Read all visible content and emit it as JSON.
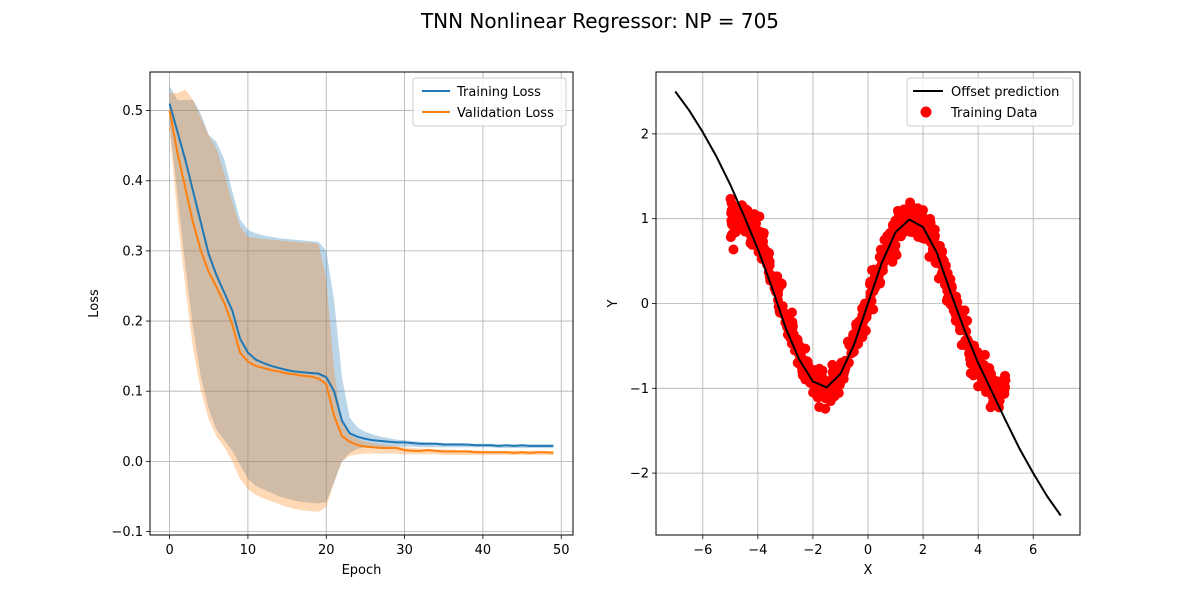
{
  "figure": {
    "title": "TNN Nonlinear Regressor: NP = 705"
  },
  "chart_data": [
    {
      "type": "line",
      "panel": "left",
      "xlabel": "Epoch",
      "ylabel": "Loss",
      "xlim": [
        -2.5,
        51.5
      ],
      "ylim": [
        -0.105,
        0.555
      ],
      "xticks": [
        0,
        10,
        20,
        30,
        40,
        50
      ],
      "yticks": [
        -0.1,
        0.0,
        0.1,
        0.2,
        0.3,
        0.4,
        0.5
      ],
      "xtick_labels": [
        "0",
        "10",
        "20",
        "30",
        "40",
        "50"
      ],
      "ytick_labels": [
        "−0.1",
        "0.0",
        "0.1",
        "0.2",
        "0.3",
        "0.4",
        "0.5"
      ],
      "grid": true,
      "legend": "upper right",
      "series": [
        {
          "name": "Training Loss",
          "color": "#1f77b4",
          "band_opacity": 0.3,
          "x": [
            0,
            1,
            2,
            3,
            4,
            5,
            6,
            7,
            8,
            9,
            10,
            11,
            12,
            13,
            14,
            15,
            16,
            17,
            18,
            19,
            20,
            21,
            22,
            23,
            24,
            25,
            26,
            27,
            28,
            29,
            30,
            31,
            32,
            33,
            34,
            35,
            36,
            37,
            38,
            39,
            40,
            41,
            42,
            43,
            44,
            45,
            46,
            47,
            48,
            49
          ],
          "mean": [
            0.51,
            0.47,
            0.43,
            0.385,
            0.34,
            0.295,
            0.265,
            0.24,
            0.215,
            0.175,
            0.155,
            0.145,
            0.14,
            0.136,
            0.133,
            0.13,
            0.128,
            0.127,
            0.126,
            0.125,
            0.12,
            0.1,
            0.058,
            0.04,
            0.035,
            0.032,
            0.03,
            0.029,
            0.028,
            0.027,
            0.027,
            0.026,
            0.025,
            0.025,
            0.025,
            0.024,
            0.024,
            0.024,
            0.024,
            0.023,
            0.023,
            0.023,
            0.022,
            0.023,
            0.022,
            0.023,
            0.022,
            0.022,
            0.022,
            0.022
          ],
          "upper": [
            0.535,
            0.515,
            0.515,
            0.515,
            0.495,
            0.465,
            0.455,
            0.43,
            0.385,
            0.345,
            0.33,
            0.325,
            0.322,
            0.32,
            0.318,
            0.317,
            0.316,
            0.315,
            0.314,
            0.313,
            0.3,
            0.23,
            0.12,
            0.062,
            0.048,
            0.042,
            0.038,
            0.035,
            0.033,
            0.031,
            0.03,
            0.029,
            0.028,
            0.027,
            0.027,
            0.026,
            0.026,
            0.026,
            0.025,
            0.025,
            0.025,
            0.025,
            0.024,
            0.024,
            0.024,
            0.024,
            0.024,
            0.024,
            0.024,
            0.024
          ],
          "lower": [
            0.48,
            0.38,
            0.28,
            0.19,
            0.12,
            0.075,
            0.045,
            0.03,
            0.015,
            -0.005,
            -0.025,
            -0.035,
            -0.04,
            -0.045,
            -0.05,
            -0.053,
            -0.056,
            -0.058,
            -0.059,
            -0.06,
            -0.058,
            -0.03,
            0.0,
            0.012,
            0.018,
            0.02,
            0.02,
            0.02,
            0.021,
            0.021,
            0.021,
            0.021,
            0.02,
            0.02,
            0.02,
            0.02,
            0.02,
            0.02,
            0.02,
            0.02,
            0.02,
            0.02,
            0.019,
            0.019,
            0.019,
            0.019,
            0.019,
            0.019,
            0.019,
            0.019
          ]
        },
        {
          "name": "Validation Loss",
          "color": "#ff7f0e",
          "band_opacity": 0.3,
          "x": [
            0,
            1,
            2,
            3,
            4,
            5,
            6,
            7,
            8,
            9,
            10,
            11,
            12,
            13,
            14,
            15,
            16,
            17,
            18,
            19,
            20,
            21,
            22,
            23,
            24,
            25,
            26,
            27,
            28,
            29,
            30,
            31,
            32,
            33,
            34,
            35,
            36,
            37,
            38,
            39,
            40,
            41,
            42,
            43,
            44,
            45,
            46,
            47,
            48,
            49
          ],
          "mean": [
            0.5,
            0.44,
            0.39,
            0.34,
            0.3,
            0.27,
            0.248,
            0.225,
            0.195,
            0.155,
            0.142,
            0.136,
            0.133,
            0.13,
            0.128,
            0.125,
            0.124,
            0.122,
            0.121,
            0.118,
            0.11,
            0.065,
            0.036,
            0.028,
            0.023,
            0.021,
            0.02,
            0.019,
            0.019,
            0.019,
            0.016,
            0.015,
            0.015,
            0.016,
            0.015,
            0.014,
            0.014,
            0.014,
            0.014,
            0.013,
            0.013,
            0.013,
            0.013,
            0.013,
            0.012,
            0.013,
            0.012,
            0.013,
            0.013,
            0.012
          ],
          "upper": [
            0.525,
            0.525,
            0.53,
            0.515,
            0.49,
            0.465,
            0.445,
            0.41,
            0.37,
            0.335,
            0.32,
            0.318,
            0.317,
            0.316,
            0.315,
            0.314,
            0.313,
            0.312,
            0.312,
            0.31,
            0.26,
            0.13,
            0.055,
            0.038,
            0.032,
            0.028,
            0.026,
            0.024,
            0.023,
            0.022,
            0.02,
            0.019,
            0.018,
            0.018,
            0.017,
            0.017,
            0.017,
            0.016,
            0.016,
            0.016,
            0.015,
            0.015,
            0.015,
            0.015,
            0.015,
            0.015,
            0.015,
            0.015,
            0.015,
            0.015
          ],
          "lower": [
            0.47,
            0.35,
            0.25,
            0.16,
            0.1,
            0.06,
            0.035,
            0.02,
            0.0,
            -0.025,
            -0.04,
            -0.048,
            -0.053,
            -0.057,
            -0.061,
            -0.065,
            -0.068,
            -0.07,
            -0.071,
            -0.072,
            -0.065,
            -0.03,
            0.0,
            0.008,
            0.01,
            0.011,
            0.011,
            0.011,
            0.011,
            0.011,
            0.01,
            0.01,
            0.01,
            0.01,
            0.01,
            0.009,
            0.009,
            0.009,
            0.009,
            0.009,
            0.009,
            0.009,
            0.009,
            0.009,
            0.009,
            0.009,
            0.009,
            0.009,
            0.009,
            0.009
          ]
        }
      ]
    },
    {
      "type": "scatter",
      "panel": "right",
      "xlabel": "X",
      "ylabel": "Y",
      "xlim": [
        -7.7,
        7.7
      ],
      "ylim": [
        -2.73,
        2.73
      ],
      "xticks": [
        -6,
        -4,
        -2,
        0,
        2,
        4,
        6
      ],
      "yticks": [
        -2,
        -1,
        0,
        1,
        2
      ],
      "xtick_labels": [
        "−6",
        "−4",
        "−2",
        "0",
        "2",
        "4",
        "6"
      ],
      "ytick_labels": [
        "−2",
        "−1",
        "0",
        "1",
        "2"
      ],
      "grid": true,
      "legend": "upper right",
      "series": [
        {
          "name": "Offset prediction",
          "type": "line",
          "color": "#000000",
          "x": [
            -7.0,
            -6.5,
            -6.0,
            -5.5,
            -5.0,
            -4.5,
            -4.0,
            -3.5,
            -3.0,
            -2.5,
            -2.0,
            -1.5,
            -1.0,
            -0.5,
            0.0,
            0.5,
            1.0,
            1.5,
            2.0,
            2.5,
            3.0,
            3.5,
            4.0,
            4.5,
            5.0,
            5.5,
            6.0,
            6.5,
            7.0
          ],
          "y": [
            2.5,
            2.28,
            2.02,
            1.73,
            1.4,
            1.03,
            0.64,
            0.2,
            -0.28,
            -0.66,
            -0.92,
            -0.99,
            -0.83,
            -0.48,
            0.0,
            0.48,
            0.84,
            0.99,
            0.9,
            0.6,
            0.13,
            -0.31,
            -0.7,
            -1.04,
            -1.38,
            -1.71,
            -2.0,
            -2.27,
            -2.5
          ]
        },
        {
          "name": "Training Data",
          "type": "scatter",
          "color": "#ff0000",
          "function": "sin",
          "n_points": 705,
          "x_range": [
            -5,
            5
          ],
          "noise_std": 0.1
        }
      ]
    }
  ]
}
